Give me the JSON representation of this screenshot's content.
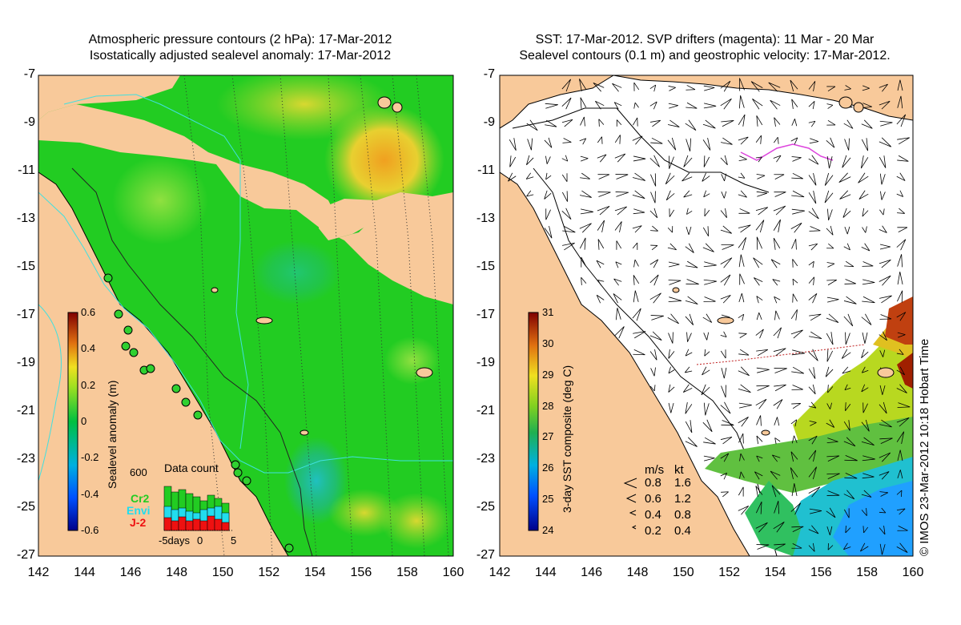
{
  "left_panel": {
    "title_line1": "Atmospheric pressure contours (2 hPa): 17-Mar-2012",
    "title_line2": "Isostatically adjusted sealevel anomaly: 17-Mar-2012",
    "colorbar": {
      "label": "Sealevel anomaly (m)",
      "ticks": [
        "0.6",
        "0.4",
        "0.2",
        "0",
        "-0.2",
        "-0.4",
        "-0.6"
      ]
    },
    "data_count": {
      "title": "Data count",
      "ymax_label": "600",
      "x_ticks": [
        "-5days",
        "0",
        "5"
      ],
      "legend": [
        {
          "name": "Cr2",
          "color": "#22cc22"
        },
        {
          "name": "Envi",
          "color": "#22ddee"
        },
        {
          "name": "J-2",
          "color": "#ee1111"
        }
      ]
    }
  },
  "right_panel": {
    "title_line1": "SST: 17-Mar-2012. SVP drifters (magenta): 11 Mar - 20 Mar",
    "title_line2": "Sealevel contours (0.1 m) and geostrophic velocity: 17-Mar-2012.",
    "colorbar": {
      "label": "3-day SST composite (deg C)",
      "ticks": [
        "31",
        "30",
        "29",
        "28",
        "27",
        "26",
        "25",
        "24"
      ]
    },
    "velocity_legend": {
      "header_ms": "m/s",
      "header_kt": "kt",
      "rows": [
        {
          "ms": "0.8",
          "kt": "1.6"
        },
        {
          "ms": "0.6",
          "kt": "1.2"
        },
        {
          "ms": "0.4",
          "kt": "0.8"
        },
        {
          "ms": "0.2",
          "kt": "0.4"
        }
      ]
    }
  },
  "axes": {
    "y_ticks": [
      "-7",
      "-9",
      "-11",
      "-13",
      "-15",
      "-17",
      "-19",
      "-21",
      "-23",
      "-25",
      "-27"
    ],
    "x_ticks": [
      "142",
      "144",
      "146",
      "148",
      "150",
      "152",
      "154",
      "156",
      "158",
      "160"
    ]
  },
  "credit": "© IMOS 23-Mar-2012 10:18 Hobart Time",
  "colors": {
    "land": "#f8c99a",
    "ocean_anomaly": "#22cc22",
    "drifters": "#dd44dd",
    "bathymetry": "#40e0e0"
  }
}
